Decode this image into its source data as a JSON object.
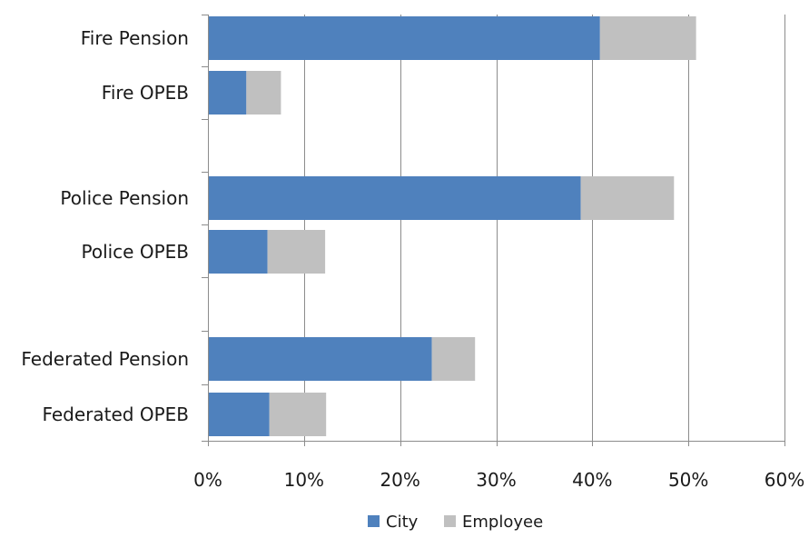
{
  "chart_data": {
    "type": "bar",
    "orientation": "horizontal",
    "stacked": true,
    "categories": [
      "Fire Pension",
      "Fire OPEB",
      "Police Pension",
      "Police OPEB",
      "Federated Pension",
      "Federated OPEB"
    ],
    "groups": [
      [
        "Fire Pension",
        "Fire OPEB"
      ],
      [
        "Police Pension",
        "Police OPEB"
      ],
      [
        "Federated Pension",
        "Federated OPEB"
      ]
    ],
    "series": [
      {
        "name": "City",
        "color": "#4f81bd",
        "values": [
          40.8,
          4.0,
          38.8,
          6.2,
          23.3,
          6.4
        ]
      },
      {
        "name": "Employee",
        "color": "#c0c0c0",
        "values": [
          10.0,
          3.6,
          9.7,
          6.0,
          4.5,
          5.9
        ]
      }
    ],
    "xlim": [
      0,
      60
    ],
    "xticks": [
      "0%",
      "10%",
      "20%",
      "30%",
      "40%",
      "50%",
      "60%"
    ],
    "grid": "vertical",
    "legend": "bottom"
  }
}
